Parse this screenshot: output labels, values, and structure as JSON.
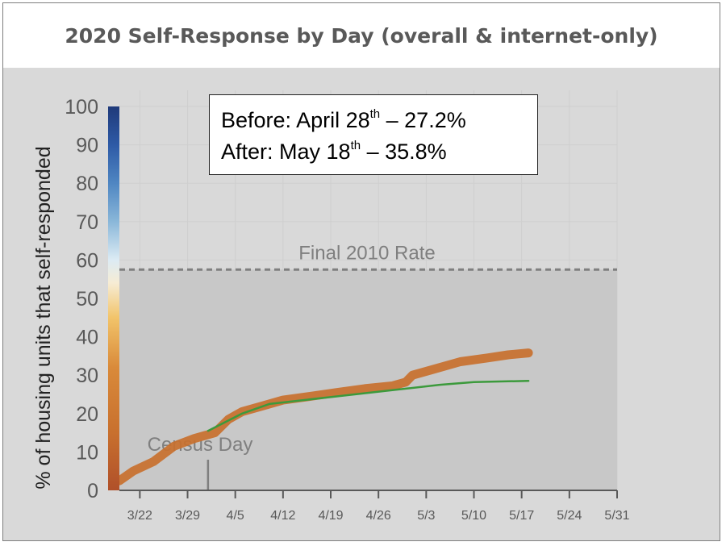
{
  "chart_data": {
    "type": "line",
    "title": "2020 Self-Response by Day (overall & internet-only)",
    "ylabel": "% of housing units that self-responded",
    "xlabel": "",
    "ylim": [
      0,
      100
    ],
    "yticks": [
      "0",
      "10",
      "20",
      "30",
      "40",
      "50",
      "60",
      "70",
      "80",
      "90",
      "100"
    ],
    "xlim": [
      "2020-03-19",
      "2020-05-31"
    ],
    "xtick_dates": [
      "2020-03-22",
      "2020-03-29",
      "2020-04-05",
      "2020-04-12",
      "2020-04-19",
      "2020-04-26",
      "2020-05-03",
      "2020-05-10",
      "2020-05-17",
      "2020-05-24",
      "2020-05-31"
    ],
    "xtick_labels": [
      "3/22",
      "3/29",
      "4/5",
      "4/12",
      "4/19",
      "4/26",
      "5/3",
      "5/10",
      "5/17",
      "5/24",
      "5/31"
    ],
    "reference_line": {
      "label": "Final 2010 Rate",
      "value": 57.5
    },
    "marker": {
      "label": "Census Day",
      "date": "2020-04-01"
    },
    "annotation": {
      "line1_pre": "Before: April 28",
      "line1_sup": "th",
      "line1_post": " – 27.2%",
      "line2_pre": "After: May 18",
      "line2_sup": "th",
      "line2_post": " – 35.8%"
    },
    "series": [
      {
        "color": "#c8702e",
        "x": [
          "2020-03-19",
          "2020-03-21",
          "2020-03-24",
          "2020-03-27",
          "2020-03-30",
          "2020-04-02",
          "2020-04-04",
          "2020-04-06",
          "2020-04-09",
          "2020-04-12",
          "2020-04-16",
          "2020-04-20",
          "2020-04-24",
          "2020-04-28",
          "2020-04-30",
          "2020-05-01",
          "2020-05-04",
          "2020-05-08",
          "2020-05-12",
          "2020-05-15",
          "2020-05-18"
        ],
        "values": [
          2.5,
          5,
          7.5,
          11.5,
          13.5,
          15,
          18.5,
          20.5,
          22,
          23.5,
          24.5,
          25.5,
          26.5,
          27.2,
          28.2,
          30,
          31.5,
          33.5,
          34.5,
          35.3,
          35.8
        ]
      },
      {
        "color": "#3c9a3c",
        "x": [
          "2020-04-01",
          "2020-04-06",
          "2020-04-10",
          "2020-04-15",
          "2020-04-20",
          "2020-04-25",
          "2020-04-30",
          "2020-05-05",
          "2020-05-10",
          "2020-05-15",
          "2020-05-18"
        ],
        "values": [
          15.5,
          20,
          22.5,
          23.5,
          24.5,
          25.5,
          26.5,
          27.5,
          28.2,
          28.4,
          28.5
        ]
      }
    ],
    "colors": {
      "plot_background": "#d9d9d9",
      "shaded_band": "#c8c8c8",
      "reference_line": "#7f7f7f",
      "axis": "#595959",
      "tick_label": "#595959",
      "marker": "#7f7f7f"
    },
    "grid": true
  }
}
